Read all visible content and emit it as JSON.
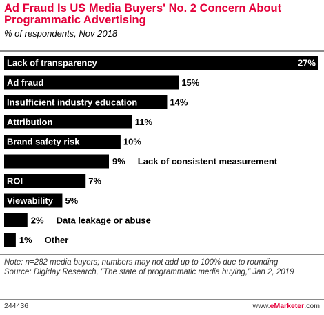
{
  "header": {
    "title": "Ad Fraud Is US Media Buyers' No. 2 Concern About Programmatic Advertising",
    "subtitle": "% of respondents, Nov 2018"
  },
  "chart_data": {
    "type": "bar",
    "orientation": "horizontal",
    "categories": [
      "Lack of transparency",
      "Ad fraud",
      "Insufficient industry education",
      "Attribution",
      "Brand safety risk",
      "Lack of consistent measurement",
      "ROI",
      "Viewability",
      "Data leakage or abuse",
      "Other"
    ],
    "values": [
      27,
      15,
      14,
      11,
      10,
      9,
      7,
      5,
      2,
      1
    ],
    "value_labels": [
      "27%",
      "15%",
      "14%",
      "11%",
      "10%",
      "9%",
      "7%",
      "5%",
      "2%",
      "1%"
    ],
    "xlim": [
      0,
      27
    ],
    "grid": false,
    "legend": "none",
    "bar_color": "#000000",
    "label_color_inside": "#ffffff"
  },
  "notes": {
    "note": "Note: n=282 media buyers; numbers may not add up to 100% due to rounding",
    "source": "Source: Digiday Research, \"The state of programmatic media buying,\" Jan 2, 2019"
  },
  "footer": {
    "chart_id": "244436",
    "brand_prefix": "www.",
    "brand_mark": "eMarketer",
    "brand_suffix": ".com"
  },
  "colors": {
    "accent": "#e4003a",
    "bars": "#000000",
    "rule": "#8a8a8a"
  }
}
